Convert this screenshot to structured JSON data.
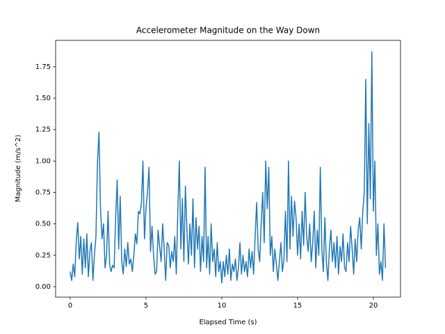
{
  "chart_data": {
    "type": "line",
    "title": "Accelerometer Magnitude on the Way Down",
    "x_label": "Elapsed Time (s)",
    "y_label": "Magnitude (m/s^2)",
    "x": [
      0,
      0.1,
      0.2,
      0.3,
      0.4,
      0.5,
      0.6,
      0.7,
      0.8,
      0.9,
      1,
      1.1,
      1.2,
      1.3,
      1.4,
      1.5,
      1.6,
      1.7,
      1.8,
      1.9,
      2,
      2.1,
      2.2,
      2.3,
      2.4,
      2.5,
      2.6,
      2.7,
      2.8,
      2.9,
      3,
      3.1,
      3.2,
      3.3,
      3.4,
      3.5,
      3.6,
      3.7,
      3.8,
      3.9,
      4,
      4.1,
      4.2,
      4.3,
      4.4,
      4.5,
      4.6,
      4.7,
      4.8,
      4.9,
      5,
      5.1,
      5.2,
      5.3,
      5.4,
      5.5,
      5.6,
      5.7,
      5.8,
      5.9,
      6,
      6.1,
      6.2,
      6.3,
      6.4,
      6.5,
      6.6,
      6.7,
      6.8,
      6.9,
      7,
      7.1,
      7.2,
      7.3,
      7.4,
      7.5,
      7.6,
      7.7,
      7.8,
      7.9,
      8,
      8.1,
      8.2,
      8.3,
      8.4,
      8.5,
      8.6,
      8.7,
      8.8,
      8.9,
      9,
      9.1,
      9.2,
      9.3,
      9.4,
      9.5,
      9.6,
      9.7,
      9.8,
      9.9,
      10,
      10.1,
      10.2,
      10.3,
      10.4,
      10.5,
      10.6,
      10.7,
      10.8,
      10.9,
      11,
      11.1,
      11.2,
      11.3,
      11.4,
      11.5,
      11.6,
      11.7,
      11.8,
      11.9,
      12,
      12.1,
      12.2,
      12.3,
      12.4,
      12.5,
      12.6,
      12.7,
      12.8,
      12.9,
      13,
      13.1,
      13.2,
      13.3,
      13.4,
      13.5,
      13.6,
      13.7,
      13.8,
      13.9,
      14,
      14.1,
      14.2,
      14.3,
      14.4,
      14.5,
      14.6,
      14.7,
      14.8,
      14.9,
      15,
      15.1,
      15.2,
      15.3,
      15.4,
      15.5,
      15.6,
      15.7,
      15.8,
      15.9,
      16,
      16.1,
      16.2,
      16.3,
      16.4,
      16.5,
      16.6,
      16.7,
      16.8,
      16.9,
      17,
      17.1,
      17.2,
      17.3,
      17.4,
      17.5,
      17.6,
      17.7,
      17.8,
      17.9,
      18,
      18.1,
      18.2,
      18.3,
      18.4,
      18.5,
      18.6,
      18.7,
      18.8,
      18.9,
      19,
      19.1,
      19.2,
      19.3,
      19.4,
      19.5,
      19.6,
      19.7,
      19.8,
      19.9,
      20,
      20.1,
      20.2,
      20.3,
      20.4,
      20.5,
      20.6,
      20.7,
      20.8
    ],
    "series": [
      {
        "color": "#1f77b4",
        "values": [
          0.12,
          0.05,
          0.18,
          0.08,
          0.36,
          0.51,
          0.22,
          0.4,
          0.1,
          0.38,
          0.15,
          0.42,
          0.08,
          0.28,
          0.35,
          0.05,
          0.25,
          0.4,
          0.99,
          1.23,
          0.62,
          0.38,
          0.5,
          0.15,
          0.25,
          0.6,
          0.18,
          0.12,
          0.17,
          0.15,
          0.55,
          0.85,
          0.3,
          0.72,
          0.2,
          0.1,
          0.3,
          0.16,
          0.35,
          0.18,
          0.22,
          0.12,
          0.25,
          0.42,
          0.34,
          0.6,
          0.58,
          0.66,
          1.0,
          0.38,
          0.62,
          0.75,
          0.95,
          0.28,
          0.48,
          0.25,
          0.1,
          0.12,
          0.45,
          0.32,
          0.2,
          0.5,
          0.3,
          0.05,
          0.35,
          0.33,
          0.15,
          0.28,
          0.2,
          0.4,
          0.1,
          0.6,
          1.0,
          0.3,
          0.7,
          0.2,
          0.8,
          0.45,
          0.18,
          0.5,
          0.25,
          0.7,
          0.15,
          0.55,
          0.3,
          0.48,
          0.12,
          0.4,
          0.2,
          0.95,
          0.15,
          0.4,
          0.1,
          0.5,
          0.2,
          0.3,
          0.08,
          0.35,
          0.12,
          0.2,
          0.03,
          0.2,
          0.08,
          0.25,
          0.1,
          0.3,
          0.05,
          0.18,
          0.12,
          0.22,
          0.05,
          0.15,
          0.35,
          0.1,
          0.25,
          0.12,
          0.2,
          0.08,
          0.3,
          0.15,
          0.28,
          0.1,
          0.4,
          0.67,
          0.3,
          0.2,
          0.5,
          0.75,
          0.35,
          1.0,
          0.62,
          0.95,
          0.25,
          0.4,
          0.12,
          0.3,
          0.18,
          0.05,
          0.2,
          0.35,
          0.12,
          0.22,
          0.6,
          0.2,
          1.0,
          0.3,
          0.72,
          0.4,
          0.68,
          0.55,
          0.25,
          0.5,
          0.22,
          0.6,
          0.33,
          0.75,
          0.4,
          0.28,
          0.5,
          0.2,
          0.35,
          0.6,
          0.15,
          0.45,
          0.25,
          0.95,
          0.3,
          0.12,
          0.55,
          0.2,
          0.05,
          0.3,
          0.45,
          0.2,
          0.35,
          0.15,
          0.4,
          0.1,
          0.32,
          0.2,
          0.42,
          0.15,
          0.12,
          0.35,
          0.2,
          0.48,
          0.3,
          0.1,
          0.38,
          0.2,
          0.45,
          0.55,
          0.3,
          0.6,
          0.75,
          1.65,
          0.5,
          1.3,
          0.7,
          1.87,
          0.6,
          1.0,
          0.25,
          0.5,
          0.1,
          0.2,
          0.05,
          0.5,
          0.15
        ]
      }
    ],
    "xlim": [
      -0.96,
      21.79
    ],
    "ylim": [
      -0.083,
      1.96
    ],
    "xticks": [
      0,
      5,
      10,
      15,
      20
    ],
    "yticks": [
      {
        "value": 0,
        "label": "0.00"
      },
      {
        "value": 0.25,
        "label": "0.25"
      },
      {
        "value": 0.5,
        "label": "0.50"
      },
      {
        "value": 0.75,
        "label": "0.75"
      },
      {
        "value": 1,
        "label": "1.00"
      },
      {
        "value": 1.25,
        "label": "1.25"
      },
      {
        "value": 1.5,
        "label": "1.50"
      },
      {
        "value": 1.75,
        "label": "1.75"
      }
    ],
    "grid": false
  }
}
